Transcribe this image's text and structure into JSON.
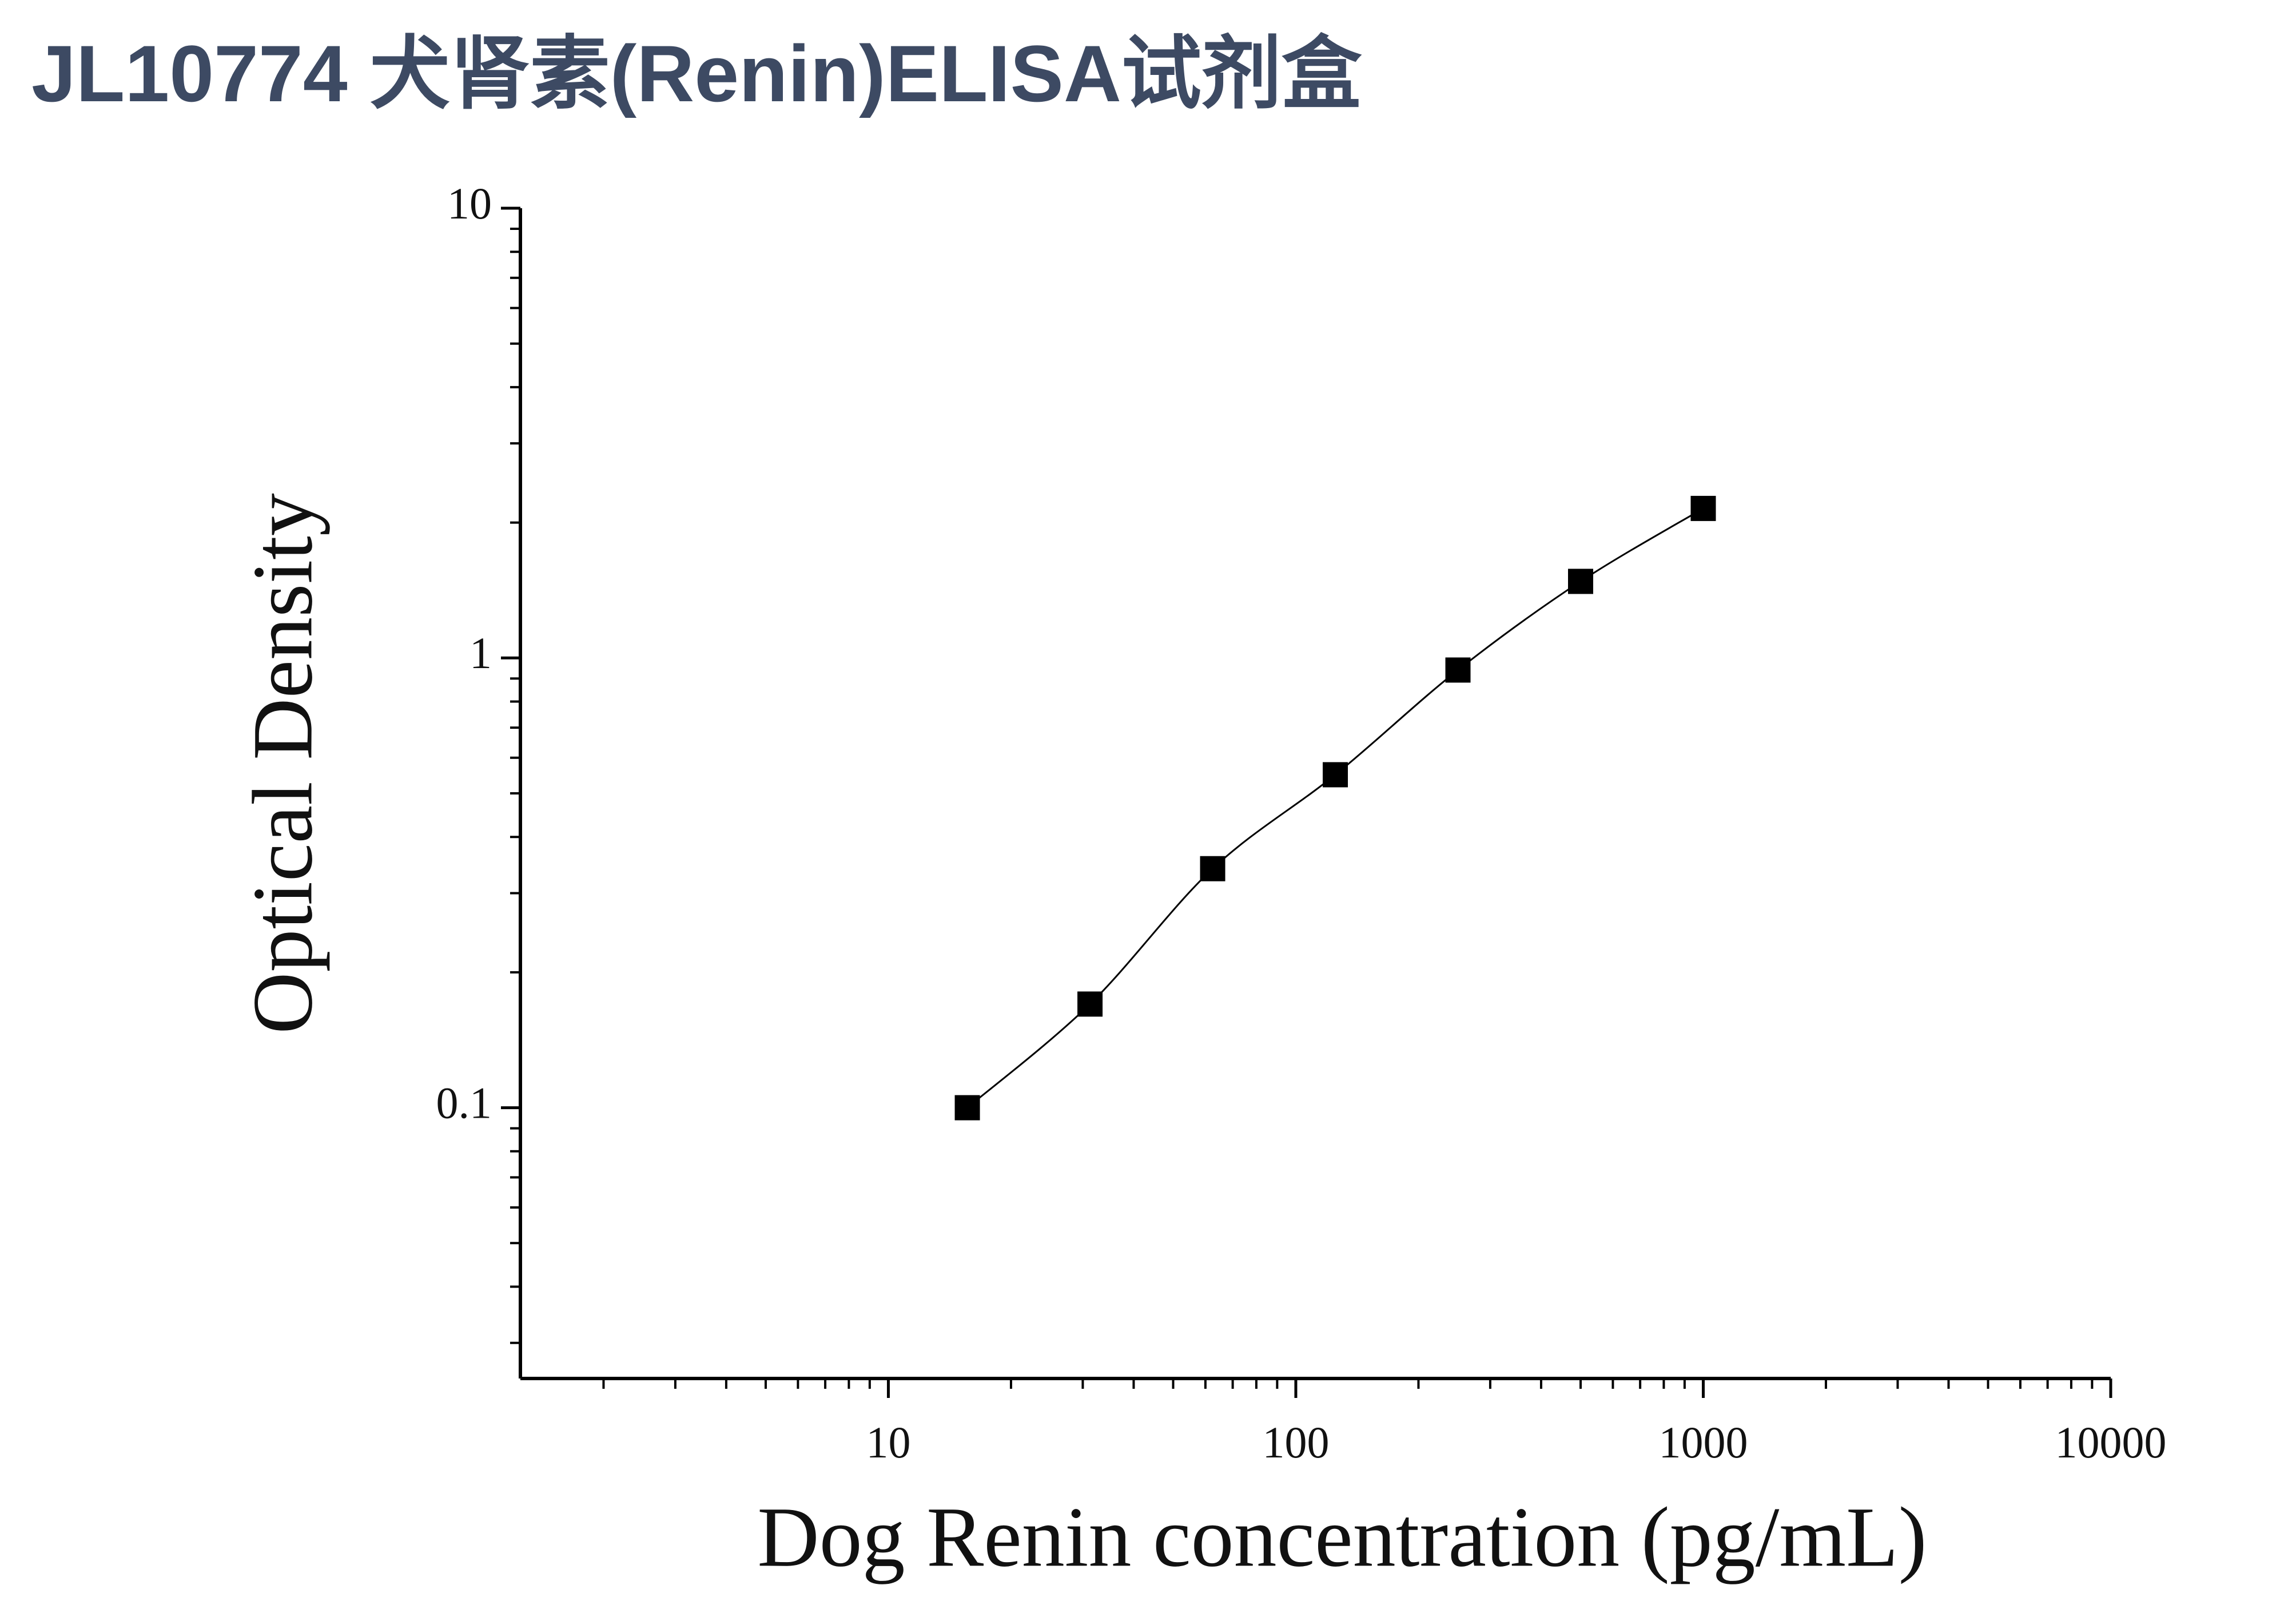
{
  "chart_data": {
    "type": "line",
    "title": "JL10774 犬肾素(Renin)ELISA试剂盒",
    "x_label": "Dog Renin concentration (pg/mL)",
    "y_label": "Optical Density",
    "series": [
      {
        "x": [
          15.625,
          31.25,
          62.5,
          125,
          250,
          500,
          1000
        ],
        "values": [
          0.1,
          0.17,
          0.34,
          0.55,
          0.94,
          1.48,
          2.15
        ],
        "color": "#000000"
      }
    ],
    "xlim": [
      1.25,
      10000
    ],
    "xticks": [
      10,
      100,
      1000,
      10000
    ],
    "ylim": [
      0.025,
      10
    ],
    "yticks": [
      0.1,
      1,
      10
    ],
    "log_x": true,
    "log_y": true,
    "marker": "square"
  }
}
